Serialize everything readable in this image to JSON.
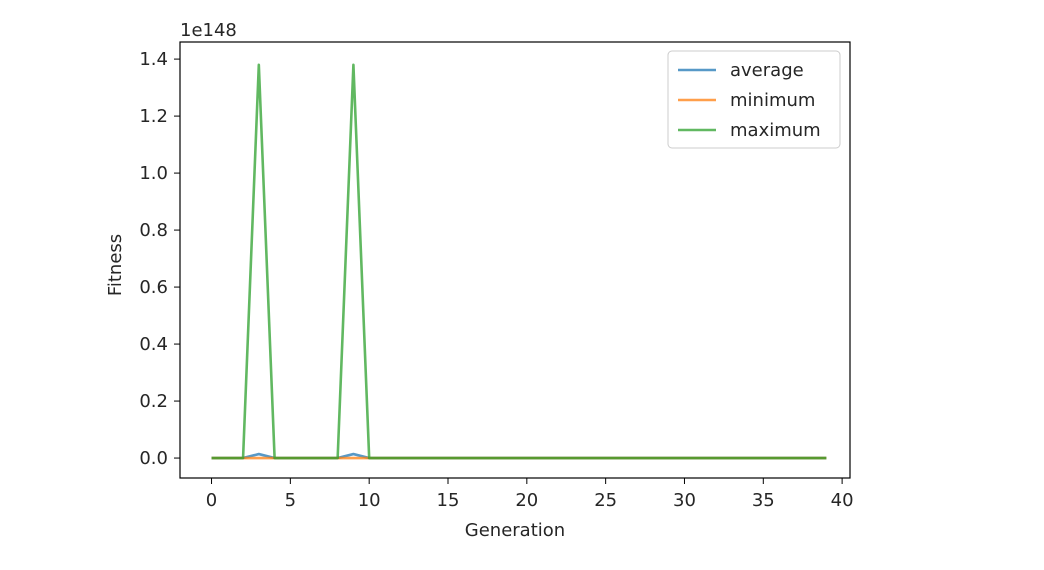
{
  "chart_data": {
    "type": "line",
    "xlabel": "Generation",
    "ylabel": "Fitness",
    "y_offset_text": "1e148",
    "xlim": [
      -2,
      40.5
    ],
    "ylim": [
      -0.07,
      1.46
    ],
    "xticks": [
      0,
      5,
      10,
      15,
      20,
      25,
      30,
      35,
      40
    ],
    "yticks": [
      0.0,
      0.2,
      0.4,
      0.6,
      0.8,
      1.0,
      1.2,
      1.4
    ],
    "ytick_labels": [
      "0.0",
      "0.2",
      "0.4",
      "0.6",
      "0.8",
      "1.0",
      "1.2",
      "1.4"
    ],
    "grid": false,
    "legend_position": "top-right",
    "x": [
      0,
      1,
      2,
      3,
      4,
      5,
      6,
      7,
      8,
      9,
      10,
      11,
      12,
      13,
      14,
      15,
      16,
      17,
      18,
      19,
      20,
      21,
      22,
      23,
      24,
      25,
      26,
      27,
      28,
      29,
      30,
      31,
      32,
      33,
      34,
      35,
      36,
      37,
      38,
      39
    ],
    "series": [
      {
        "name": "average",
        "color": "#1f77b4",
        "values": [
          0,
          0,
          0,
          0.014,
          0,
          0,
          0,
          0,
          0,
          0.014,
          0,
          0,
          0,
          0,
          0,
          0,
          0,
          0,
          0,
          0,
          0,
          0,
          0,
          0,
          0,
          0,
          0,
          0,
          0,
          0,
          0,
          0,
          0,
          0,
          0,
          0,
          0,
          0,
          0,
          0
        ]
      },
      {
        "name": "minimum",
        "color": "#ff7f0e",
        "values": [
          0,
          0,
          0,
          0,
          0,
          0,
          0,
          0,
          0,
          0,
          0,
          0,
          0,
          0,
          0,
          0,
          0,
          0,
          0,
          0,
          0,
          0,
          0,
          0,
          0,
          0,
          0,
          0,
          0,
          0,
          0,
          0,
          0,
          0,
          0,
          0,
          0,
          0,
          0,
          0
        ]
      },
      {
        "name": "maximum",
        "color": "#2ca02c",
        "values": [
          0,
          0,
          0,
          1.38,
          0,
          0,
          0,
          0,
          0,
          1.38,
          0,
          0,
          0,
          0,
          0,
          0,
          0,
          0,
          0,
          0,
          0,
          0,
          0,
          0,
          0,
          0,
          0,
          0,
          0,
          0,
          0,
          0,
          0,
          0,
          0,
          0,
          0,
          0,
          0,
          0
        ]
      }
    ]
  }
}
